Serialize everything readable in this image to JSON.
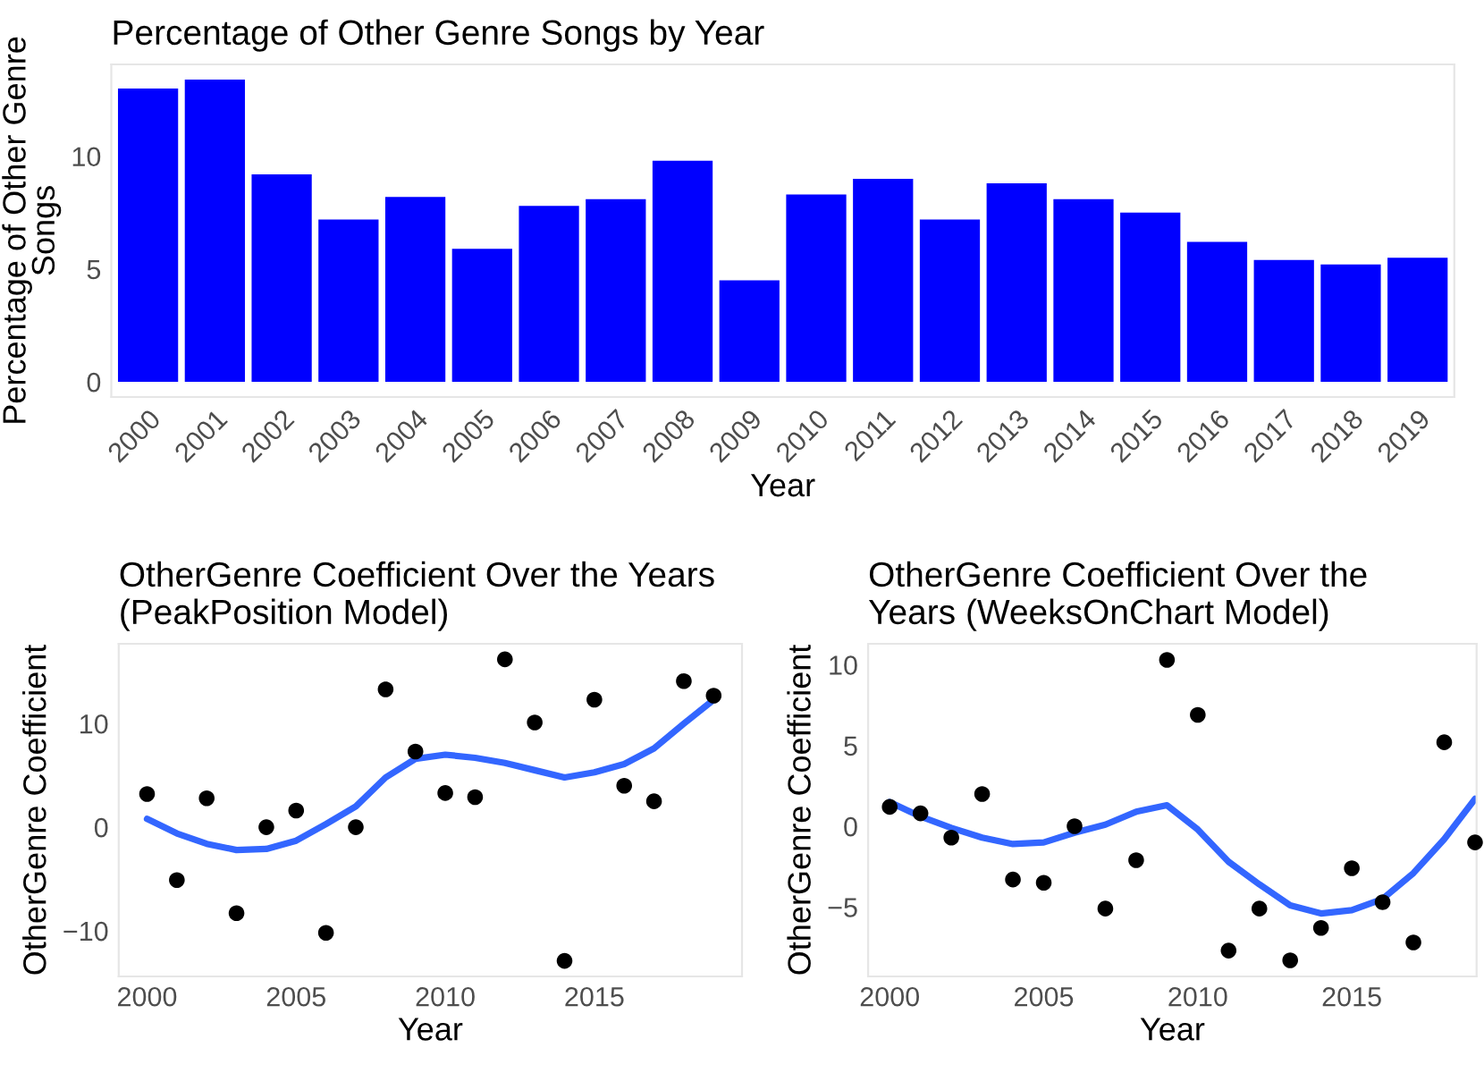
{
  "chart_data": [
    {
      "type": "bar",
      "title": "Percentage of Other Genre Songs by Year",
      "xlabel": "Year",
      "ylabel": "Percentage of Other Genre\nSongs",
      "categories": [
        "2000",
        "2001",
        "2002",
        "2003",
        "2004",
        "2005",
        "2006",
        "2007",
        "2008",
        "2009",
        "2010",
        "2011",
        "2012",
        "2013",
        "2014",
        "2015",
        "2016",
        "2017",
        "2018",
        "2019"
      ],
      "series": [
        {
          "color": "#0000ff",
          "values": [
            13.0,
            13.4,
            9.2,
            7.2,
            8.2,
            5.9,
            7.8,
            8.1,
            9.8,
            4.5,
            8.3,
            9.0,
            7.2,
            8.8,
            8.1,
            7.5,
            6.2,
            5.4,
            5.2,
            5.5
          ]
        }
      ],
      "ylim": [
        -0.67,
        14.07
      ],
      "yticks": [
        0,
        5,
        10
      ],
      "grid": false,
      "legend": false
    },
    {
      "type": "scatter",
      "title": "OtherGenre Coefficient Over the Years\n(PeakPosition Model)",
      "xlabel": "Year",
      "ylabel": "OtherGenre Coefficient",
      "xlim": [
        1999.05,
        2019.95
      ],
      "xticks": [
        2000,
        2005,
        2010,
        2015
      ],
      "ylim": [
        -14.4,
        17.7
      ],
      "yticks": [
        {
          "value": -10,
          "label": "−10"
        },
        0,
        10
      ],
      "grid": false,
      "legend": false,
      "series": [
        {
          "type": "scatter",
          "color": "#000000",
          "marker": "circle",
          "x": [
            2000,
            2001,
            2002,
            2003,
            2004,
            2005,
            2006,
            2007,
            2008,
            2009,
            2010,
            2011,
            2012,
            2013,
            2014,
            2015,
            2016,
            2017,
            2018,
            2019
          ],
          "values": [
            3.2,
            -5.1,
            2.8,
            -8.3,
            0,
            1.6,
            -10.2,
            0,
            13.3,
            7.3,
            3.3,
            2.9,
            16.2,
            10.1,
            -12.9,
            12.3,
            4.0,
            2.5,
            14.1,
            12.7
          ]
        },
        {
          "type": "line",
          "color": "#3366ff",
          "line_style": "solid",
          "x": [
            2000,
            2001,
            2002,
            2003,
            2004,
            2005,
            2006,
            2007,
            2008,
            2009,
            2010,
            2011,
            2012,
            2013,
            2014,
            2015,
            2016,
            2017,
            2018,
            2019
          ],
          "values": [
            0.8,
            -0.6,
            -1.6,
            -2.2,
            -2.1,
            -1.3,
            0.3,
            2.0,
            4.8,
            6.6,
            7.0,
            6.7,
            6.2,
            5.5,
            4.8,
            5.3,
            6.1,
            7.6,
            10.0,
            12.3
          ]
        }
      ]
    },
    {
      "type": "scatter",
      "title": "OtherGenre Coefficient Over the\nYears (WeeksOnChart Model)",
      "xlabel": "Year",
      "ylabel": "OtherGenre Coefficient",
      "xlim": [
        1999.3,
        2019.05
      ],
      "xticks": [
        2000,
        2005,
        2010,
        2015
      ],
      "ylim": [
        -9.3,
        11.3
      ],
      "yticks": [
        {
          "value": -5,
          "label": "−5"
        },
        0,
        5,
        10
      ],
      "grid": false,
      "legend": false,
      "series": [
        {
          "type": "scatter",
          "color": "#000000",
          "marker": "circle",
          "x": [
            2000,
            2001,
            2002,
            2003,
            2004,
            2005,
            2006,
            2007,
            2008,
            2009,
            2010,
            2011,
            2012,
            2013,
            2014,
            2015,
            2016,
            2017,
            2018,
            2019
          ],
          "values": [
            1.2,
            0.8,
            -0.7,
            2.0,
            -3.3,
            -3.5,
            0.0,
            -5.1,
            -2.1,
            10.3,
            6.9,
            -7.7,
            -5.1,
            -8.3,
            -6.3,
            -2.6,
            -4.7,
            -7.2,
            5.2,
            -1.0
          ]
        },
        {
          "type": "line",
          "color": "#3366ff",
          "line_style": "solid",
          "x": [
            2000,
            2001,
            2002,
            2003,
            2004,
            2005,
            2006,
            2007,
            2008,
            2009,
            2010,
            2011,
            2012,
            2013,
            2014,
            2015,
            2016,
            2017,
            2018,
            2019
          ],
          "values": [
            1.5,
            0.6,
            -0.1,
            -0.7,
            -1.1,
            -1.0,
            -0.4,
            0.1,
            0.9,
            1.3,
            -0.2,
            -2.2,
            -3.6,
            -4.9,
            -5.4,
            -5.2,
            -4.5,
            -2.9,
            -0.8,
            1.7
          ]
        }
      ]
    }
  ]
}
